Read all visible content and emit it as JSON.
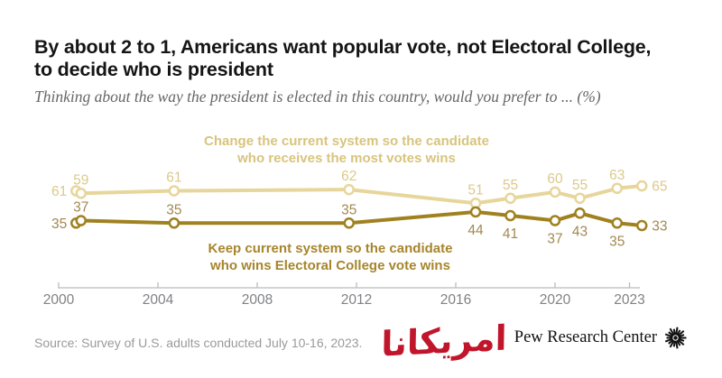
{
  "title_line1": "By about 2 to 1, Americans want popular vote, not Electoral College,",
  "title_line2": "to decide who is president",
  "subtitle": "Thinking about the way the president is elected in this country, would you prefer to ... (%)",
  "annotations": {
    "change_line1": "Change the current system so the candidate",
    "change_line2": "who receives the most votes wins",
    "keep_line1": "Keep current system so the candidate",
    "keep_line2": "who wins Electoral College vote wins"
  },
  "chart_data": {
    "type": "line",
    "x_ticks": [
      2000,
      2004,
      2008,
      2012,
      2016,
      2020,
      2023
    ],
    "x_range": [
      2000,
      2023.6
    ],
    "y_implied_range": [
      0,
      100
    ],
    "grid": "off",
    "axis_color": "#BBBBBB",
    "tick_label_color": "#808285",
    "series": [
      {
        "name": "Change the current system so the candidate who receives the most votes wins",
        "color": "#E7D69B",
        "label_color": "#DCC98A",
        "points": [
          {
            "x": 2000.7,
            "v": 61,
            "label_pos": "left"
          },
          {
            "x": 2000.9,
            "v": 59,
            "label_pos": "above"
          },
          {
            "x": 2004.65,
            "v": 61,
            "label_pos": "above"
          },
          {
            "x": 2011.7,
            "v": 62,
            "label_pos": "above"
          },
          {
            "x": 2016.8,
            "v": 51,
            "label_pos": "above"
          },
          {
            "x": 2018.2,
            "v": 55,
            "label_pos": "above"
          },
          {
            "x": 2020.0,
            "v": 60,
            "label_pos": "above"
          },
          {
            "x": 2021.0,
            "v": 55,
            "label_pos": "above"
          },
          {
            "x": 2022.5,
            "v": 63,
            "label_pos": "above"
          },
          {
            "x": 2023.5,
            "v": 65,
            "label_pos": "right"
          }
        ]
      },
      {
        "name": "Keep current system so the candidate who wins Electoral College vote wins",
        "color": "#A08120",
        "label_color": "#A18950",
        "points": [
          {
            "x": 2000.7,
            "v": 35,
            "label_pos": "left"
          },
          {
            "x": 2000.9,
            "v": 37,
            "label_pos": "above"
          },
          {
            "x": 2004.65,
            "v": 35,
            "label_pos": "above"
          },
          {
            "x": 2011.7,
            "v": 35,
            "label_pos": "above"
          },
          {
            "x": 2016.8,
            "v": 44,
            "label_pos": "below"
          },
          {
            "x": 2018.2,
            "v": 41,
            "label_pos": "below"
          },
          {
            "x": 2020.0,
            "v": 37,
            "label_pos": "below"
          },
          {
            "x": 2021.0,
            "v": 43,
            "label_pos": "below"
          },
          {
            "x": 2022.5,
            "v": 35,
            "label_pos": "below"
          },
          {
            "x": 2023.5,
            "v": 33,
            "label_pos": "right"
          }
        ]
      }
    ]
  },
  "footer": {
    "source": "Source: Survey of U.S. adults conducted July 10-16, 2023.",
    "brand": "Pew Research Center",
    "watermark": "امریکانا"
  }
}
